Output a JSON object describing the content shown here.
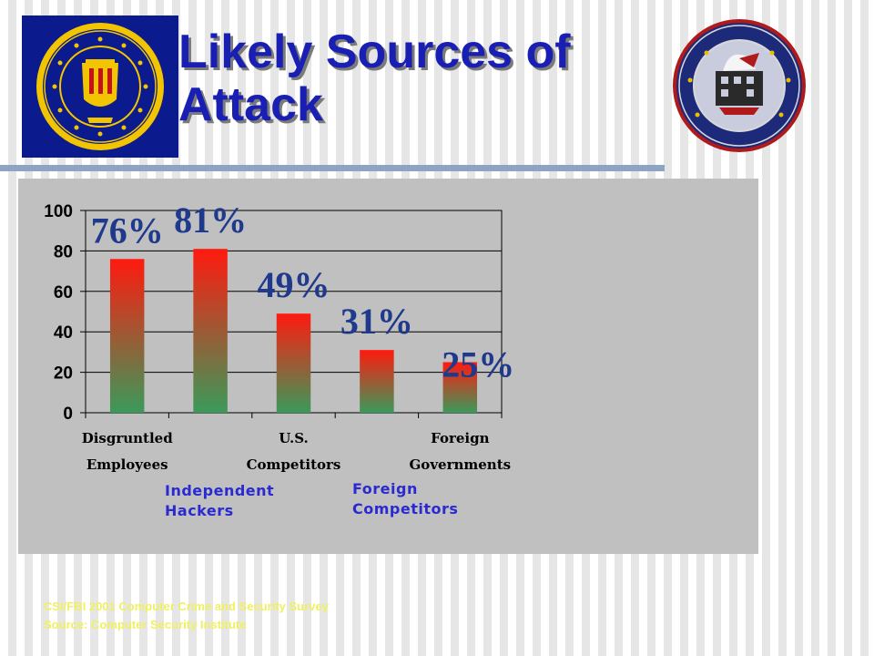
{
  "slide": {
    "title_line1": "Likely Sources of",
    "title_line2": "Attack",
    "sub_labels": [
      "Independent Hackers",
      "Foreign Competitors"
    ],
    "source_line1": "CSI/FBI 2001 Computer Crime and Security Survey",
    "source_line2": "Source: Computer Security Institute",
    "logos": [
      "fbi-seal",
      "nipc-seal"
    ]
  },
  "colors": {
    "title": "#1a1fb4",
    "bar_top": "#ff1a0f",
    "bar_bottom": "#3a9a5a",
    "data_label": "#1f3a8c",
    "sub_label": "#2a2ad0",
    "source_text": "#f0f060"
  },
  "chart_data": {
    "type": "bar",
    "categories": [
      "Disgruntled Employees",
      "Independent Hackers",
      "U.S. Competitors",
      "Foreign Competitors",
      "Foreign Governments"
    ],
    "tick_labels": [
      [
        "Disgruntled",
        "Employees"
      ],
      null,
      [
        "U.S.",
        "Competitors"
      ],
      null,
      [
        "Foreign",
        "Governments"
      ]
    ],
    "values": [
      76,
      81,
      49,
      31,
      25
    ],
    "data_labels": [
      "76%",
      "81%",
      "49%",
      "31%",
      "25%"
    ],
    "yticks": [
      0,
      20,
      40,
      60,
      80,
      100
    ],
    "ylim": [
      0,
      100
    ],
    "grid": true,
    "legend": "none"
  }
}
